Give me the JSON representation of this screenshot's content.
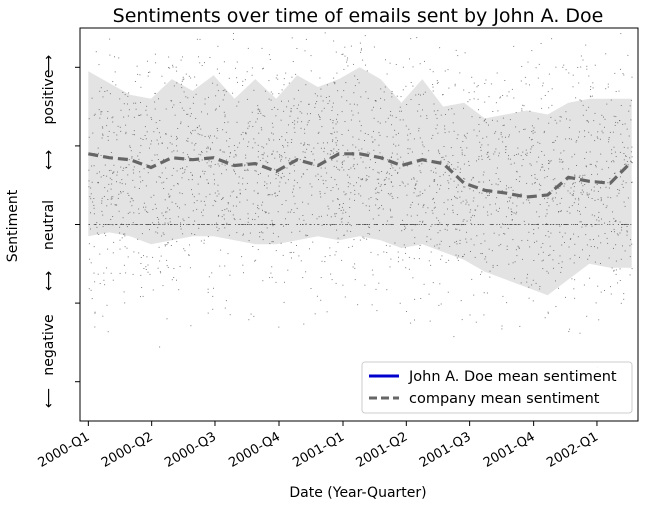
{
  "chart_data": {
    "type": "scatter",
    "title": "Sentiments over time of emails sent by John A. Doe",
    "xlabel": "Date (Year-Quarter)",
    "ylabel": "Sentiment",
    "ylabel_parts": {
      "positive": "positive",
      "neutral": "neutral",
      "negative": "negative"
    },
    "ylabel_arrows": {
      "up": "⟶",
      "both": "⟷",
      "down": "⟵"
    },
    "x_ticks": [
      "2000-Q1",
      "2000-Q2",
      "2000-Q3",
      "2000-Q4",
      "2001-Q1",
      "2001-Q2",
      "2001-Q3",
      "2001-Q4",
      "2002-Q1"
    ],
    "x_tick_days": [
      0,
      91,
      182,
      274,
      366,
      457,
      548,
      640,
      731
    ],
    "xlim": [
      -12,
      790
    ],
    "ylim": [
      -0.5,
      0.5
    ],
    "y_ticks": [
      -0.4,
      -0.2,
      0.0,
      0.2,
      0.4
    ],
    "grid": false,
    "legend_position": "lower-right",
    "series": [
      {
        "name": "John A. Doe mean sentiment",
        "style": "solid",
        "color": "#0000cc",
        "x": [],
        "y": []
      },
      {
        "name": "company mean sentiment",
        "style": "dashed",
        "color": "#666666",
        "x": [
          0,
          30,
          60,
          90,
          120,
          150,
          180,
          210,
          240,
          270,
          300,
          330,
          360,
          390,
          420,
          450,
          480,
          510,
          540,
          570,
          600,
          630,
          660,
          690,
          720,
          750,
          781
        ],
        "y": [
          0.18,
          0.17,
          0.165,
          0.145,
          0.17,
          0.165,
          0.17,
          0.15,
          0.155,
          0.135,
          0.165,
          0.15,
          0.18,
          0.18,
          0.17,
          0.15,
          0.165,
          0.155,
          0.105,
          0.087,
          0.08,
          0.07,
          0.075,
          0.12,
          0.11,
          0.105,
          0.16
        ]
      }
    ],
    "band": {
      "color": "#e3e3e3",
      "x": [
        0,
        30,
        60,
        90,
        120,
        150,
        180,
        210,
        240,
        270,
        300,
        330,
        360,
        390,
        420,
        450,
        480,
        510,
        540,
        570,
        600,
        630,
        660,
        690,
        720,
        750,
        781
      ],
      "upper": [
        0.39,
        0.36,
        0.33,
        0.32,
        0.37,
        0.34,
        0.38,
        0.32,
        0.37,
        0.32,
        0.38,
        0.35,
        0.37,
        0.4,
        0.37,
        0.31,
        0.37,
        0.3,
        0.31,
        0.27,
        0.28,
        0.29,
        0.28,
        0.31,
        0.32,
        0.32,
        0.32
      ],
      "lower": [
        -0.03,
        -0.02,
        -0.03,
        -0.05,
        -0.04,
        -0.03,
        -0.03,
        -0.04,
        -0.05,
        -0.05,
        -0.04,
        -0.03,
        -0.04,
        -0.03,
        -0.04,
        -0.06,
        -0.05,
        -0.07,
        -0.09,
        -0.12,
        -0.14,
        -0.16,
        -0.18,
        -0.14,
        -0.1,
        -0.11,
        -0.11
      ]
    },
    "scatter_color": "#555555"
  }
}
